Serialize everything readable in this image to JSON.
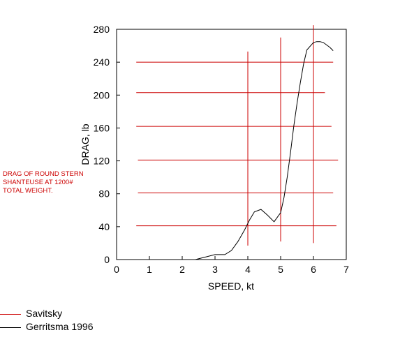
{
  "chart_data": {
    "type": "line",
    "xlabel": "SPEED, kt",
    "ylabel": "DRAG, lb",
    "xlim": [
      0,
      7
    ],
    "ylim": [
      0,
      280
    ],
    "xticks": [
      "0",
      "1",
      "2",
      "3",
      "4",
      "5",
      "6",
      "7"
    ],
    "yticks": [
      "0",
      "40",
      "80",
      "120",
      "160",
      "200",
      "240",
      "280"
    ],
    "grid": false,
    "legend_placement": "bottom-left",
    "series": [
      {
        "name": "Savitsky",
        "color": "#cc0000",
        "segments": [
          {
            "x": [
              0.6,
              6.6
            ],
            "y": [
              240,
              240
            ]
          },
          {
            "x": [
              0.6,
              6.35
            ],
            "y": [
              203,
              203
            ]
          },
          {
            "x": [
              0.6,
              6.55
            ],
            "y": [
              162,
              162
            ]
          },
          {
            "x": [
              0.65,
              6.75
            ],
            "y": [
              121,
              121
            ]
          },
          {
            "x": [
              0.65,
              6.6
            ],
            "y": [
              81,
              81
            ]
          },
          {
            "x": [
              0.6,
              6.7
            ],
            "y": [
              41,
              41
            ]
          },
          {
            "x": [
              4.0,
              4.0
            ],
            "y": [
              17,
              253
            ]
          },
          {
            "x": [
              5.0,
              5.0
            ],
            "y": [
              22,
              270
            ]
          },
          {
            "x": [
              6.0,
              6.0
            ],
            "y": [
              20,
              285
            ]
          }
        ]
      },
      {
        "name": "Gerritsma 1996",
        "color": "#000000",
        "x": [
          2.4,
          2.7,
          3.0,
          3.3,
          3.5,
          3.7,
          3.9,
          4.05,
          4.2,
          4.4,
          4.6,
          4.8,
          5.0,
          5.1,
          5.2,
          5.3,
          5.4,
          5.5,
          5.6,
          5.7,
          5.8,
          6.0,
          6.1,
          6.2,
          6.3,
          6.4,
          6.5,
          6.6
        ],
        "y": [
          0,
          3,
          6,
          6,
          11,
          22,
          36,
          48,
          58,
          61,
          54,
          46,
          57,
          75,
          100,
          130,
          162,
          190,
          215,
          238,
          255,
          264,
          265,
          265,
          264,
          261,
          258,
          254
        ]
      }
    ],
    "annotation": [
      "DRAG OF ROUND STERN",
      "SHANTEUSE AT 1200#",
      "TOTAL WEIGHT."
    ]
  }
}
